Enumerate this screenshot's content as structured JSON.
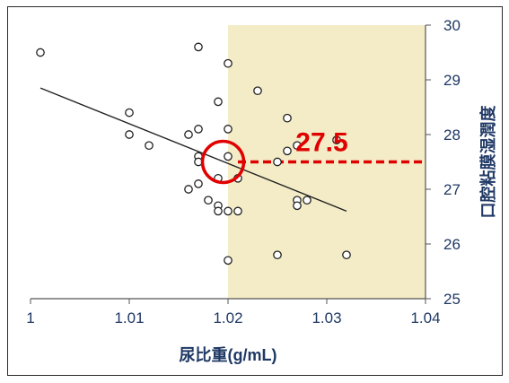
{
  "chart_data": {
    "type": "scatter",
    "xlabel": "尿比重(g/mL)",
    "ylabel": "口腔粘膜湿潤度",
    "xlim": [
      1.0,
      1.04
    ],
    "ylim": [
      25,
      30
    ],
    "xticks": [
      1,
      1.01,
      1.02,
      1.03,
      1.04
    ],
    "xtick_labels": [
      "1",
      "1.01",
      "1.02",
      "1.03",
      "1.04"
    ],
    "yticks": [
      25,
      26,
      27,
      28,
      29,
      30
    ],
    "ytick_labels": [
      "25",
      "26",
      "27",
      "28",
      "29",
      "30"
    ],
    "y_axis_side": "right",
    "grid": false,
    "points": [
      {
        "x": 1.001,
        "y": 29.5
      },
      {
        "x": 1.01,
        "y": 28.4
      },
      {
        "x": 1.01,
        "y": 28.0
      },
      {
        "x": 1.012,
        "y": 27.8
      },
      {
        "x": 1.016,
        "y": 28.0
      },
      {
        "x": 1.017,
        "y": 29.6
      },
      {
        "x": 1.017,
        "y": 28.1
      },
      {
        "x": 1.017,
        "y": 27.6
      },
      {
        "x": 1.017,
        "y": 27.5
      },
      {
        "x": 1.016,
        "y": 27.0
      },
      {
        "x": 1.017,
        "y": 27.1
      },
      {
        "x": 1.018,
        "y": 26.8
      },
      {
        "x": 1.019,
        "y": 28.6
      },
      {
        "x": 1.019,
        "y": 27.2
      },
      {
        "x": 1.019,
        "y": 26.7
      },
      {
        "x": 1.019,
        "y": 26.6
      },
      {
        "x": 1.02,
        "y": 29.3
      },
      {
        "x": 1.02,
        "y": 28.1
      },
      {
        "x": 1.02,
        "y": 27.6
      },
      {
        "x": 1.02,
        "y": 26.6
      },
      {
        "x": 1.02,
        "y": 25.7
      },
      {
        "x": 1.021,
        "y": 27.2
      },
      {
        "x": 1.021,
        "y": 26.6
      },
      {
        "x": 1.023,
        "y": 28.8
      },
      {
        "x": 1.025,
        "y": 27.5
      },
      {
        "x": 1.025,
        "y": 25.8
      },
      {
        "x": 1.026,
        "y": 28.3
      },
      {
        "x": 1.026,
        "y": 27.7
      },
      {
        "x": 1.027,
        "y": 27.8
      },
      {
        "x": 1.027,
        "y": 26.8
      },
      {
        "x": 1.027,
        "y": 26.7
      },
      {
        "x": 1.028,
        "y": 26.8
      },
      {
        "x": 1.031,
        "y": 27.9
      },
      {
        "x": 1.032,
        "y": 25.8
      }
    ],
    "trendline": {
      "x": [
        1.001,
        1.032
      ],
      "y": [
        28.85,
        26.6
      ]
    },
    "shaded_region": {
      "x_from": 1.02,
      "x_to": 1.04,
      "color": "#f3ecc6"
    },
    "threshold_line": {
      "y": 27.5,
      "x_from": 1.021,
      "x_to": 1.04,
      "color": "#e00000"
    },
    "highlight_circle": {
      "x": 1.0195,
      "y": 27.5,
      "color": "#e00000"
    },
    "annotation": {
      "text": "27.5",
      "x": 1.0295,
      "y": 27.7,
      "color": "#e00000"
    }
  }
}
